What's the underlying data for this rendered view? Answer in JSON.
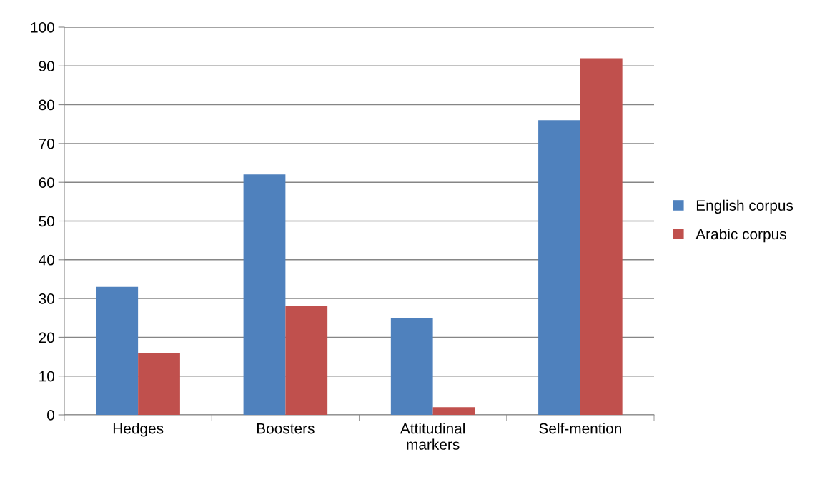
{
  "chart_data": {
    "type": "bar",
    "categories": [
      "Hedges",
      "Boosters",
      "Attitudinal\nmarkers",
      "Self-mention"
    ],
    "series": [
      {
        "name": "English corpus",
        "color": "#4f81bd",
        "values": [
          33,
          62,
          25,
          76
        ]
      },
      {
        "name": "Arabic corpus",
        "color": "#c0504d",
        "values": [
          16,
          28,
          2,
          92
        ]
      }
    ],
    "ylim": [
      0,
      100
    ],
    "yticks": [
      0,
      10,
      20,
      30,
      40,
      50,
      60,
      70,
      80,
      90,
      100
    ],
    "grid": "y",
    "legend": "right"
  }
}
